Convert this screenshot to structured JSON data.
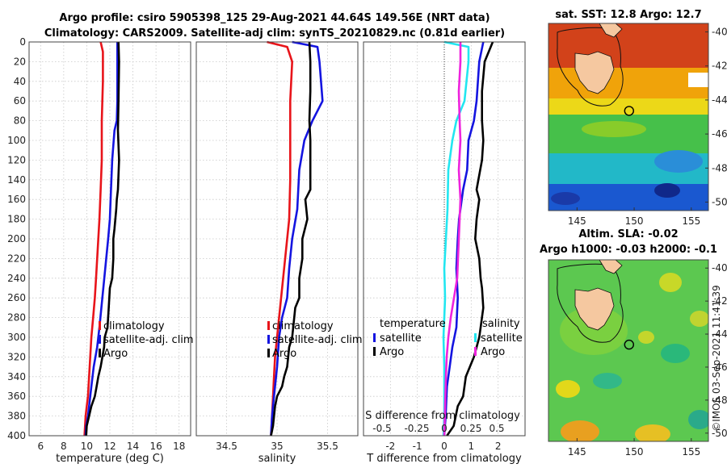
{
  "header": {
    "line1": "Argo profile: csiro 5905398_125 29-Aug-2021 44.64S 149.56E (NRT data)",
    "line2": "Climatology: CARS2009. Satellite-adj clim: synTS_20210829.nc (0.81d earlier)"
  },
  "colors": {
    "red": "#e8141a",
    "blue": "#1414e0",
    "black": "#000000",
    "cyan": "#22e6f0",
    "magenta": "#ee22dd"
  },
  "chart_data": [
    {
      "id": "temp",
      "type": "line",
      "xlabel": "temperature (deg C)",
      "ylabel": "",
      "xlim": [
        5,
        19
      ],
      "ylim": [
        0,
        400
      ],
      "xticks": [
        6,
        8,
        10,
        12,
        14,
        16,
        18
      ],
      "xticklabels": [
        "6",
        "8",
        "10",
        "12",
        "14",
        "16",
        "18"
      ],
      "yticks": [
        0,
        20,
        40,
        60,
        80,
        100,
        120,
        140,
        160,
        180,
        200,
        220,
        240,
        260,
        280,
        300,
        320,
        340,
        360,
        380,
        400
      ],
      "yticklabels": [
        "0",
        "20",
        "40",
        "60",
        "80",
        "100",
        "120",
        "140",
        "160",
        "180",
        "200",
        "220",
        "240",
        "260",
        "280",
        "300",
        "320",
        "340",
        "360",
        "380",
        "400"
      ],
      "legend": [
        "climatology",
        "satellite-adj. clim",
        "Argo"
      ],
      "series": [
        {
          "name": "climatology",
          "color": "#e8141a",
          "x": [
            11.2,
            11.4,
            11.4,
            11.3,
            11.3,
            11.2,
            11.1,
            11.0,
            10.9,
            10.8,
            10.7,
            10.55,
            10.4,
            10.3,
            10.2,
            10.1,
            10.0,
            9.9,
            9.85,
            9.8
          ],
          "y": [
            0,
            10,
            40,
            80,
            120,
            150,
            180,
            200,
            220,
            240,
            260,
            280,
            300,
            320,
            340,
            360,
            370,
            380,
            390,
            400
          ]
        },
        {
          "name": "satellite-adj. clim",
          "color": "#1414e0",
          "x": [
            12.65,
            12.65,
            12.65,
            12.6,
            12.4,
            12.2,
            12.1,
            12.0,
            11.85,
            11.6,
            11.35,
            11.1,
            10.9,
            10.6,
            10.4,
            10.2,
            10.1,
            9.95,
            9.9
          ],
          "y": [
            0,
            20,
            60,
            80,
            90,
            120,
            150,
            180,
            200,
            230,
            260,
            290,
            310,
            330,
            350,
            370,
            380,
            390,
            400
          ]
        },
        {
          "name": "Argo",
          "color": "#000000",
          "x": [
            12.75,
            12.8,
            12.75,
            12.7,
            12.8,
            12.7,
            12.6,
            12.55,
            12.4,
            12.3,
            12.3,
            12.2,
            12.0,
            11.9,
            11.8,
            11.55,
            11.5,
            11.2,
            11.0,
            10.85,
            10.7,
            10.4,
            10.2,
            10.0,
            9.95
          ],
          "y": [
            0,
            20,
            60,
            90,
            120,
            150,
            160,
            170,
            190,
            200,
            220,
            240,
            250,
            270,
            290,
            300,
            310,
            330,
            340,
            350,
            360,
            370,
            380,
            390,
            400
          ]
        }
      ]
    },
    {
      "id": "sal",
      "type": "line",
      "xlabel": "salinity",
      "xlim": [
        34.2,
        35.8
      ],
      "ylim": [
        0,
        400
      ],
      "xticks": [
        34.5,
        35.0,
        35.5
      ],
      "xticklabels": [
        "34.5",
        "35",
        "35.5"
      ],
      "legend": [
        "climatology",
        "satellite-adj. clim",
        "Argo"
      ],
      "series": [
        {
          "name": "climatology",
          "color": "#e8141a",
          "x": [
            34.9,
            35.1,
            35.15,
            35.13,
            35.13,
            35.13,
            35.12,
            35.1,
            35.08,
            35.06,
            35.04,
            35.02,
            35.0,
            34.98,
            34.97,
            34.96,
            34.95,
            34.94
          ],
          "y": [
            0,
            5,
            20,
            60,
            100,
            140,
            180,
            200,
            220,
            240,
            260,
            280,
            300,
            320,
            340,
            360,
            380,
            400
          ]
        },
        {
          "name": "satellite-adj. clim",
          "color": "#1414e0",
          "x": [
            35.15,
            35.4,
            35.42,
            35.45,
            35.35,
            35.27,
            35.22,
            35.2,
            35.15,
            35.12,
            35.1,
            35.05,
            35.02,
            35.0,
            34.97,
            34.95,
            34.94
          ],
          "y": [
            0,
            5,
            20,
            60,
            80,
            100,
            130,
            170,
            200,
            230,
            260,
            280,
            300,
            330,
            360,
            380,
            400
          ]
        },
        {
          "name": "Argo",
          "color": "#000000",
          "x": [
            35.32,
            35.33,
            35.33,
            35.32,
            35.33,
            35.33,
            35.33,
            35.28,
            35.3,
            35.25,
            35.25,
            35.22,
            35.22,
            35.18,
            35.16,
            35.15,
            35.12,
            35.1,
            35.07,
            35.05,
            35.0,
            34.98,
            34.96,
            34.94
          ],
          "y": [
            0,
            20,
            50,
            80,
            100,
            120,
            150,
            160,
            180,
            200,
            220,
            240,
            260,
            270,
            290,
            300,
            310,
            330,
            340,
            350,
            360,
            370,
            390,
            400
          ]
        }
      ]
    },
    {
      "id": "diff",
      "type": "line",
      "xlabel": "T difference from climatology",
      "xlabel2": "S difference from climatology",
      "xlim": [
        -3,
        3
      ],
      "ylim": [
        0,
        400
      ],
      "xticks": [
        -2,
        -1,
        0,
        1,
        2
      ],
      "xticklabels": [
        "-2",
        "-1",
        "0",
        "1",
        "2"
      ],
      "s_ticks": [
        -0.5,
        -0.25,
        0,
        0.25,
        0.5
      ],
      "s_ticklabels": [
        "-0.5",
        "-0.25",
        "0",
        "0.25",
        "0.5"
      ],
      "legend_left_title": "temperature",
      "legend_right_title": "salinity",
      "legend_left": [
        "satellite",
        "Argo"
      ],
      "legend_right": [
        "satellite",
        "Argo"
      ],
      "series": [
        {
          "name": "T satellite",
          "color": "#1414e0",
          "x": [
            1.45,
            1.3,
            1.2,
            1.1,
            0.9,
            0.85,
            0.7,
            0.55,
            0.5,
            0.45,
            0.5,
            0.45,
            0.3,
            0.2,
            0.1,
            0.05,
            0.0
          ],
          "y": [
            0,
            20,
            60,
            80,
            100,
            130,
            150,
            180,
            200,
            230,
            260,
            290,
            310,
            330,
            350,
            380,
            400
          ]
        },
        {
          "name": "T Argo",
          "color": "#000000",
          "x": [
            1.8,
            1.5,
            1.4,
            1.4,
            1.45,
            1.4,
            1.2,
            1.3,
            1.2,
            1.15,
            1.3,
            1.35,
            1.4,
            1.45,
            1.35,
            1.3,
            1.1,
            0.8,
            0.7,
            0.5,
            0.35,
            0.1
          ],
          "y": [
            0,
            20,
            50,
            80,
            100,
            120,
            150,
            160,
            180,
            200,
            220,
            240,
            250,
            270,
            290,
            300,
            320,
            340,
            360,
            370,
            390,
            400
          ]
        },
        {
          "name": "S satellite",
          "color": "#22e6f0",
          "x": [
            0.0,
            0.3,
            0.3,
            0.25,
            0.15,
            0.1,
            0.05,
            0.04,
            0.02,
            0.0,
            0.01,
            0.0,
            -0.01,
            0.0,
            0.0,
            0.0,
            -0.01
          ],
          "y": [
            0,
            5,
            20,
            60,
            80,
            100,
            130,
            170,
            200,
            230,
            260,
            280,
            300,
            330,
            360,
            380,
            400
          ]
        },
        {
          "name": "S Argo",
          "color": "#ee22dd",
          "x": [
            0.2,
            0.2,
            0.18,
            0.19,
            0.2,
            0.18,
            0.2,
            0.18,
            0.16,
            0.12,
            0.08,
            0.05,
            0.03,
            0.02,
            0.01,
            0.0
          ],
          "y": [
            0,
            20,
            50,
            80,
            100,
            130,
            160,
            200,
            240,
            260,
            280,
            300,
            320,
            340,
            370,
            400
          ]
        }
      ]
    },
    {
      "id": "sst_map",
      "type": "heatmap",
      "title": "sat. SST: 12.8 Argo: 12.7",
      "xlim": [
        142.5,
        156.5
      ],
      "ylim": [
        -50.5,
        -39.5
      ],
      "xticks": [
        145,
        150,
        155
      ],
      "xticklabels": [
        "145",
        "150",
        "155"
      ],
      "yticks": [
        -40,
        -42,
        -44,
        -46,
        -48,
        -50
      ],
      "yticklabels": [
        "-40",
        "-42",
        "-44",
        "-46",
        "-48",
        "-50"
      ],
      "marker": {
        "lon": 149.56,
        "lat": -44.64
      }
    },
    {
      "id": "sla_map",
      "type": "heatmap",
      "title": "Altim. SLA: -0.02",
      "title2": "Argo h1000: -0.03 h2000: -0.1",
      "xlim": [
        142.5,
        156.5
      ],
      "ylim": [
        -50.5,
        -39.5
      ],
      "xticks": [
        145,
        150,
        155
      ],
      "xticklabels": [
        "145",
        "150",
        "155"
      ],
      "yticks": [
        -40,
        -42,
        -44,
        -46,
        -48,
        -50
      ],
      "yticklabels": [
        "-40",
        "-42",
        "-44",
        "-46",
        "-48",
        "-50"
      ],
      "marker": {
        "lon": 149.56,
        "lat": -44.64
      }
    }
  ],
  "footer": {
    "credit": "©IMOS 03-Sep-2021 11:41:39"
  }
}
